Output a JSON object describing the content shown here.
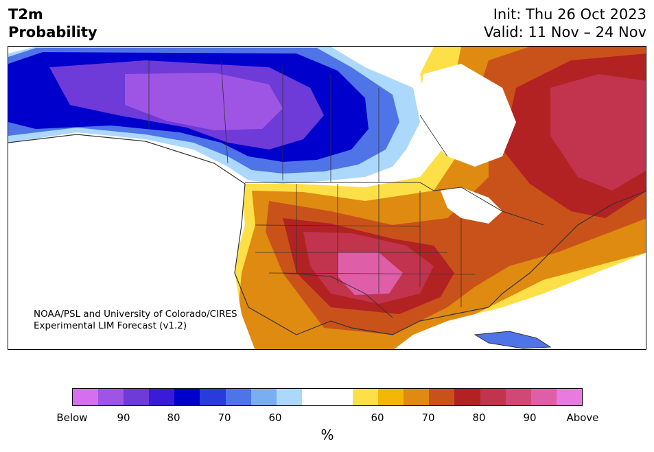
{
  "header": {
    "title_line1": "T2m",
    "title_line2": "Probability",
    "init": "Init: Thu 26 Oct 2023",
    "valid": "Valid: 11 Nov – 24 Nov"
  },
  "credit": {
    "line1": "NOAA/PSL and University of Colorado/CIRES",
    "line2": "Experimental LIM Forecast (v1.2)"
  },
  "legend": {
    "unit": "%",
    "tick_labels": [
      "Below",
      "90",
      "80",
      "70",
      "60",
      "60",
      "70",
      "80",
      "90",
      "Above"
    ],
    "colors": [
      "#d56ff0",
      "#9e55e3",
      "#6e3ad8",
      "#3a1bd8",
      "#0000cc",
      "#2a3bdb",
      "#4f74e8",
      "#79aef3",
      "#acd8fb",
      "#ffffff",
      "#ffffff",
      "#fde047",
      "#f2b705",
      "#df8a10",
      "#c9521a",
      "#b22222",
      "#c2334d",
      "#d04876",
      "#de5ea8",
      "#e87ae0"
    ]
  },
  "map": {
    "region": "North America",
    "colors": {
      "below_strong": "#9e55e3",
      "below_mid": "#0000cc",
      "below_weak": "#acd8fb",
      "above_weak": "#fde047",
      "above_mid": "#df8a10",
      "above_strong": "#b22222",
      "above_vstrong": "#de5ea8",
      "land_outline": "#333333"
    }
  }
}
